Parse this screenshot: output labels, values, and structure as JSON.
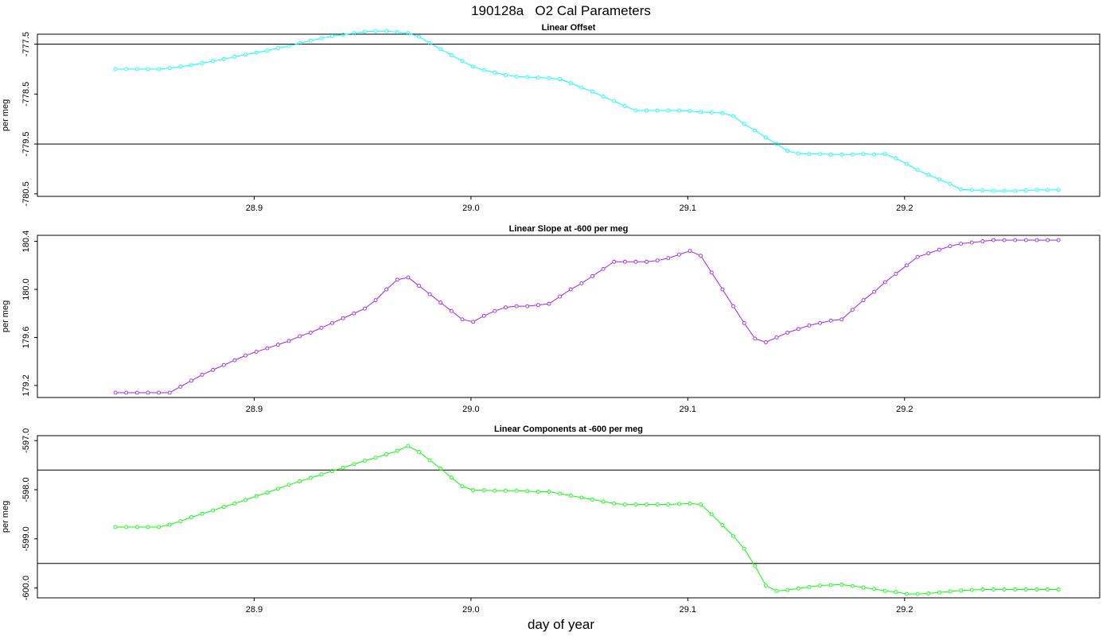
{
  "figure": {
    "title": "190128a   O2 Cal Parameters",
    "xlabel": "day of year"
  },
  "chart_data": [
    {
      "type": "line",
      "title": "Linear Offset",
      "ylabel": "per meg",
      "xlim": [
        28.8,
        29.29
      ],
      "ylim": [
        -780.55,
        -777.3
      ],
      "xticks": [
        28.9,
        29.0,
        29.1,
        29.2
      ],
      "xtick_labels": [
        "28.9",
        "29.0",
        "29.1",
        "29.2"
      ],
      "yticks": [
        -780.5,
        -779.5,
        -778.5,
        -777.5
      ],
      "ytick_labels": [
        "-780.5",
        "-779.5",
        "-778.5",
        "-777.5"
      ],
      "hlines": [
        -777.5,
        -779.5
      ],
      "series": [
        {
          "color": "#00ffff",
          "x": [
            28.836,
            28.841,
            28.846,
            28.851,
            28.856,
            28.861,
            28.866,
            28.871,
            28.876,
            28.881,
            28.886,
            28.891,
            28.896,
            28.901,
            28.906,
            28.911,
            28.916,
            28.921,
            28.926,
            28.931,
            28.936,
            28.941,
            28.946,
            28.951,
            28.956,
            28.961,
            28.966,
            28.971,
            28.976,
            28.981,
            28.986,
            28.991,
            28.996,
            29.001,
            29.006,
            29.011,
            29.016,
            29.021,
            29.026,
            29.031,
            29.036,
            29.041,
            29.046,
            29.051,
            29.056,
            29.061,
            29.066,
            29.071,
            29.076,
            29.081,
            29.086,
            29.091,
            29.096,
            29.101,
            29.106,
            29.111,
            29.116,
            29.121,
            29.126,
            29.131,
            29.136,
            29.141,
            29.146,
            29.151,
            29.156,
            29.161,
            29.166,
            29.171,
            29.176,
            29.181,
            29.186,
            29.191,
            29.196,
            29.201,
            29.206,
            29.211,
            29.216,
            29.221,
            29.226,
            29.231,
            29.236,
            29.241,
            29.246,
            29.251,
            29.256,
            29.261,
            29.266,
            29.271
          ],
          "y": [
            -778.0,
            -778.0,
            -778.0,
            -778.0,
            -778.0,
            -777.98,
            -777.95,
            -777.92,
            -777.88,
            -777.84,
            -777.8,
            -777.75,
            -777.71,
            -777.67,
            -777.63,
            -777.58,
            -777.54,
            -777.48,
            -777.43,
            -777.38,
            -777.34,
            -777.31,
            -777.28,
            -777.25,
            -777.24,
            -777.24,
            -777.26,
            -777.28,
            -777.35,
            -777.48,
            -777.6,
            -777.72,
            -777.84,
            -777.95,
            -778.02,
            -778.07,
            -778.12,
            -778.15,
            -778.16,
            -778.17,
            -778.18,
            -778.2,
            -778.28,
            -778.37,
            -778.45,
            -778.55,
            -778.64,
            -778.74,
            -778.83,
            -778.83,
            -778.83,
            -778.83,
            -778.83,
            -778.84,
            -778.86,
            -778.87,
            -778.88,
            -778.94,
            -779.1,
            -779.23,
            -779.37,
            -779.5,
            -779.64,
            -779.69,
            -779.7,
            -779.7,
            -779.71,
            -779.71,
            -779.71,
            -779.7,
            -779.71,
            -779.7,
            -779.79,
            -779.9,
            -780.02,
            -780.12,
            -780.21,
            -780.3,
            -780.41,
            -780.42,
            -780.43,
            -780.44,
            -780.44,
            -780.44,
            -780.43,
            -780.42,
            -780.42,
            -780.42
          ]
        }
      ]
    },
    {
      "type": "line",
      "title": "Linear Slope at -600 per meg",
      "ylabel": "per meg",
      "xlim": [
        28.8,
        29.29
      ],
      "ylim": [
        179.1,
        180.45
      ],
      "xticks": [
        28.9,
        29.0,
        29.1,
        29.2
      ],
      "xtick_labels": [
        "28.9",
        "29.0",
        "29.1",
        "29.2"
      ],
      "yticks": [
        179.2,
        179.6,
        180.0,
        180.4
      ],
      "ytick_labels": [
        "179.2",
        "179.6",
        "180.0",
        "180.4"
      ],
      "hlines": [],
      "series": [
        {
          "color": "#a020f0",
          "x": [
            28.836,
            28.841,
            28.846,
            28.851,
            28.856,
            28.861,
            28.866,
            28.871,
            28.876,
            28.881,
            28.886,
            28.891,
            28.896,
            28.901,
            28.906,
            28.911,
            28.916,
            28.921,
            28.926,
            28.931,
            28.936,
            28.941,
            28.946,
            28.951,
            28.956,
            28.961,
            28.966,
            28.971,
            28.976,
            28.981,
            28.986,
            28.991,
            28.996,
            29.001,
            29.006,
            29.011,
            29.016,
            29.021,
            29.026,
            29.031,
            29.036,
            29.041,
            29.046,
            29.051,
            29.056,
            29.061,
            29.066,
            29.071,
            29.076,
            29.081,
            29.086,
            29.091,
            29.096,
            29.101,
            29.106,
            29.111,
            29.116,
            29.121,
            29.126,
            29.131,
            29.136,
            29.141,
            29.146,
            29.151,
            29.156,
            29.161,
            29.166,
            29.171,
            29.176,
            29.181,
            29.186,
            29.191,
            29.196,
            29.201,
            29.206,
            29.211,
            29.216,
            29.221,
            29.226,
            29.231,
            29.236,
            29.241,
            29.246,
            29.251,
            29.256,
            29.261,
            29.266,
            29.271
          ],
          "y": [
            179.14,
            179.14,
            179.14,
            179.14,
            179.14,
            179.14,
            179.19,
            179.24,
            179.29,
            179.33,
            179.37,
            179.41,
            179.45,
            179.48,
            179.51,
            179.54,
            179.57,
            179.61,
            179.64,
            179.68,
            179.72,
            179.76,
            179.8,
            179.84,
            179.91,
            180.0,
            180.08,
            180.1,
            180.03,
            179.96,
            179.89,
            179.82,
            179.75,
            179.73,
            179.78,
            179.82,
            179.85,
            179.86,
            179.86,
            179.87,
            179.88,
            179.94,
            180.0,
            180.05,
            180.11,
            180.17,
            180.23,
            180.23,
            180.23,
            180.23,
            180.24,
            180.26,
            180.29,
            180.32,
            180.28,
            180.14,
            180.0,
            179.86,
            179.72,
            179.59,
            179.56,
            179.6,
            179.64,
            179.67,
            179.7,
            179.72,
            179.74,
            179.75,
            179.83,
            179.91,
            179.98,
            180.06,
            180.13,
            180.2,
            180.27,
            180.3,
            180.33,
            180.36,
            180.38,
            180.39,
            180.4,
            180.41,
            180.41,
            180.41,
            180.41,
            180.41,
            180.41,
            180.41
          ]
        }
      ]
    },
    {
      "type": "line",
      "title": "Linear Components at -600 per meg",
      "ylabel": "per meg",
      "xlim": [
        28.8,
        29.29
      ],
      "ylim": [
        -600.2,
        -596.9
      ],
      "xticks": [
        28.9,
        29.0,
        29.1,
        29.2
      ],
      "xtick_labels": [
        "28.9",
        "29.0",
        "29.1",
        "29.2"
      ],
      "yticks": [
        -600.0,
        -599.0,
        -598.0,
        -597.0
      ],
      "ytick_labels": [
        "-600.0",
        "-599.0",
        "-598.0",
        "-597.0"
      ],
      "hlines": [
        -597.6,
        -599.5
      ],
      "series": [
        {
          "color": "#00ff00",
          "x": [
            28.836,
            28.841,
            28.846,
            28.851,
            28.856,
            28.861,
            28.866,
            28.871,
            28.876,
            28.881,
            28.886,
            28.891,
            28.896,
            28.901,
            28.906,
            28.911,
            28.916,
            28.921,
            28.926,
            28.931,
            28.936,
            28.941,
            28.946,
            28.951,
            28.956,
            28.961,
            28.966,
            28.971,
            28.976,
            28.981,
            28.986,
            28.991,
            28.996,
            29.001,
            29.006,
            29.011,
            29.016,
            29.021,
            29.026,
            29.031,
            29.036,
            29.041,
            29.046,
            29.051,
            29.056,
            29.061,
            29.066,
            29.071,
            29.076,
            29.081,
            29.086,
            29.091,
            29.096,
            29.101,
            29.106,
            29.111,
            29.116,
            29.121,
            29.126,
            29.131,
            29.136,
            29.141,
            29.146,
            29.151,
            29.156,
            29.161,
            29.166,
            29.171,
            29.176,
            29.181,
            29.186,
            29.191,
            29.196,
            29.201,
            29.206,
            29.211,
            29.216,
            29.221,
            29.226,
            29.231,
            29.236,
            29.241,
            29.246,
            29.251,
            29.256,
            29.261,
            29.266,
            29.271
          ],
          "y": [
            -598.76,
            -598.76,
            -598.76,
            -598.76,
            -598.76,
            -598.71,
            -598.64,
            -598.56,
            -598.49,
            -598.42,
            -598.35,
            -598.28,
            -598.21,
            -598.13,
            -598.06,
            -597.98,
            -597.9,
            -597.83,
            -597.76,
            -597.69,
            -597.62,
            -597.55,
            -597.48,
            -597.41,
            -597.35,
            -597.28,
            -597.21,
            -597.11,
            -597.23,
            -597.4,
            -597.57,
            -597.75,
            -597.93,
            -598.01,
            -598.01,
            -598.02,
            -598.02,
            -598.02,
            -598.03,
            -598.04,
            -598.04,
            -598.08,
            -598.12,
            -598.16,
            -598.2,
            -598.24,
            -598.28,
            -598.3,
            -598.3,
            -598.3,
            -598.3,
            -598.3,
            -598.29,
            -598.28,
            -598.3,
            -598.5,
            -598.72,
            -598.94,
            -599.2,
            -599.55,
            -599.95,
            -600.06,
            -600.04,
            -600.01,
            -599.98,
            -599.95,
            -599.94,
            -599.93,
            -599.96,
            -599.99,
            -600.02,
            -600.06,
            -600.08,
            -600.12,
            -600.12,
            -600.11,
            -600.09,
            -600.07,
            -600.05,
            -600.04,
            -600.03,
            -600.03,
            -600.03,
            -600.03,
            -600.03,
            -600.03,
            -600.03,
            -600.03
          ]
        }
      ]
    }
  ]
}
